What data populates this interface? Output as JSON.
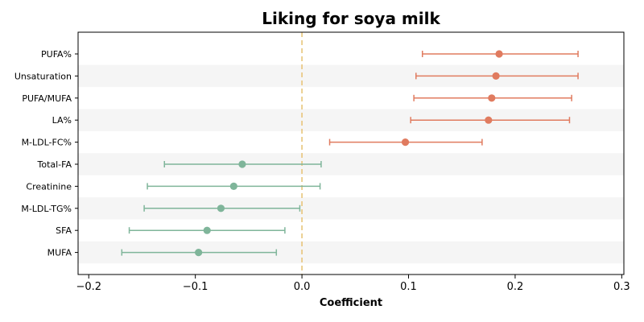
{
  "chart_data": {
    "type": "scatter",
    "subtype": "forest-plot",
    "title": "Liking for soya milk",
    "xlabel": "Coefficient",
    "ylabel": "",
    "xlim": [
      -0.21,
      0.302
    ],
    "xticks": [
      -0.2,
      -0.1,
      0.0,
      0.1,
      0.2,
      0.3
    ],
    "xtick_labels": [
      "−0.2",
      "−0.1",
      "0.0",
      "0.1",
      "0.2",
      "0.3"
    ],
    "reference_line": {
      "x": 0.0,
      "style": "dashed",
      "color": "#e8c57a"
    },
    "grid": false,
    "row_banding": true,
    "colors": {
      "positive": "#e07b5f",
      "negative": "#7fb59a",
      "band": "#f5f5f5"
    },
    "series": [
      {
        "label": "PUFA%",
        "coef": 0.185,
        "low": 0.113,
        "high": 0.259,
        "group": "positive"
      },
      {
        "label": "Unsaturation",
        "coef": 0.182,
        "low": 0.107,
        "high": 0.259,
        "group": "positive"
      },
      {
        "label": "PUFA/MUFA",
        "coef": 0.178,
        "low": 0.105,
        "high": 0.253,
        "group": "positive"
      },
      {
        "label": "LA%",
        "coef": 0.175,
        "low": 0.102,
        "high": 0.251,
        "group": "positive"
      },
      {
        "label": "M-LDL-FC%",
        "coef": 0.097,
        "low": 0.026,
        "high": 0.169,
        "group": "positive"
      },
      {
        "label": "Total-FA",
        "coef": -0.056,
        "low": -0.129,
        "high": 0.018,
        "group": "negative"
      },
      {
        "label": "Creatinine",
        "coef": -0.064,
        "low": -0.145,
        "high": 0.017,
        "group": "negative"
      },
      {
        "label": "M-LDL-TG%",
        "coef": -0.076,
        "low": -0.148,
        "high": -0.002,
        "group": "negative"
      },
      {
        "label": "SFA",
        "coef": -0.089,
        "low": -0.162,
        "high": -0.016,
        "group": "negative"
      },
      {
        "label": "MUFA",
        "coef": -0.097,
        "low": -0.169,
        "high": -0.024,
        "group": "negative"
      }
    ]
  }
}
